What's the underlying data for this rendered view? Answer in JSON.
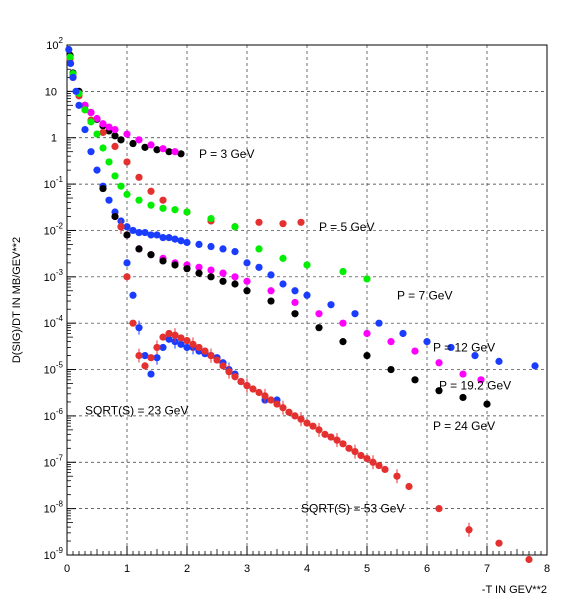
{
  "chart_data": {
    "type": "scatter",
    "xlabel": "-T IN GEV**2",
    "ylabel": "D(SIG)/DT IN MB/GEV**2",
    "xlim": [
      0,
      8
    ],
    "ylim_log10": [
      -9,
      2
    ],
    "ylog": true,
    "grid": "dashed",
    "xticks": [
      "0",
      "1",
      "2",
      "3",
      "4",
      "5",
      "6",
      "7",
      "8"
    ],
    "yticks": [
      {
        "base": "10",
        "exp": "2"
      },
      {
        "base": "10",
        "exp": ""
      },
      {
        "base": "1",
        "exp": ""
      },
      {
        "base": "10",
        "exp": "-1"
      },
      {
        "base": "10",
        "exp": "-2"
      },
      {
        "base": "10",
        "exp": "-3"
      },
      {
        "base": "10",
        "exp": "-4"
      },
      {
        "base": "10",
        "exp": "-5"
      },
      {
        "base": "10",
        "exp": "-6"
      },
      {
        "base": "10",
        "exp": "-7"
      },
      {
        "base": "10",
        "exp": "-8"
      },
      {
        "base": "10",
        "exp": "-9"
      }
    ],
    "annotations": [
      {
        "text": "P = 3 GeV",
        "x": 2.2,
        "y": 0.45
      },
      {
        "text": "P = 5 GeV",
        "x": 4.2,
        "y": 0.012
      },
      {
        "text": "P = 7 GeV",
        "x": 5.5,
        "y": 0.0004
      },
      {
        "text": "P = 12 GeV",
        "x": 6.1,
        "y": 3e-05
      },
      {
        "text": "P = 19.2 GeV",
        "x": 6.2,
        "y": 4.5e-06
      },
      {
        "text": "P = 24 GeV",
        "x": 6.1,
        "y": 6e-07
      },
      {
        "text": "SQRT(S) = 23 GeV",
        "x": 0.3,
        "y": 1.3e-06
      },
      {
        "text": "SQRT(S) = 53 GeV",
        "x": 3.9,
        "y": 1e-08
      }
    ],
    "series": [
      {
        "color": "#000000",
        "x": [
          0.05,
          0.1,
          0.2,
          0.3,
          0.4,
          0.5,
          0.6,
          0.7,
          0.8,
          0.9,
          1.1,
          1.3,
          1.5,
          1.7,
          1.9
        ],
        "y": [
          60,
          25,
          10,
          5,
          3.5,
          2.5,
          1.8,
          1.4,
          1.1,
          0.9,
          0.75,
          0.62,
          0.55,
          0.5,
          0.45
        ]
      },
      {
        "color": "#ff00ff",
        "x": [
          0.05,
          0.1,
          0.2,
          0.3,
          0.4,
          0.5,
          0.6,
          0.7,
          0.8,
          1.0,
          1.2,
          1.4,
          1.6,
          1.8
        ],
        "y": [
          55,
          22,
          9,
          5,
          3.5,
          2.6,
          2.0,
          1.7,
          1.5,
          1.2,
          0.9,
          0.7,
          0.58,
          0.5
        ]
      },
      {
        "color": "#e53030",
        "x": [
          0.05,
          0.1,
          0.2,
          0.3,
          0.4,
          0.6,
          0.8,
          1.0,
          1.2,
          1.4,
          1.6,
          2.0,
          2.4,
          2.8,
          3.2,
          3.6,
          3.9
        ],
        "y": [
          50,
          20,
          8,
          4,
          2.4,
          1.3,
          0.65,
          0.3,
          0.14,
          0.07,
          0.045,
          0.025,
          0.016,
          0.012,
          0.015,
          0.014,
          0.015
        ]
      },
      {
        "color": "#00ee00",
        "x": [
          0.05,
          0.1,
          0.2,
          0.3,
          0.4,
          0.5,
          0.6,
          0.7,
          0.8,
          0.9,
          1.0,
          1.2,
          1.4,
          1.6,
          1.8,
          2.0,
          2.4,
          2.8,
          3.2,
          3.6,
          4.0,
          4.6,
          5.0
        ],
        "y": [
          55,
          24,
          9,
          4,
          2.2,
          1.2,
          0.6,
          0.3,
          0.15,
          0.09,
          0.06,
          0.045,
          0.035,
          0.03,
          0.028,
          0.025,
          0.018,
          0.012,
          0.004,
          0.0025,
          0.0018,
          0.0013,
          0.0009
        ]
      },
      {
        "color": "#1a3cff",
        "x": [
          0.03,
          0.06,
          0.1,
          0.15,
          0.2,
          0.3,
          0.4,
          0.5,
          0.6,
          0.7,
          0.8,
          0.9,
          1.0,
          1.1,
          1.2,
          1.3,
          1.4,
          1.5,
          1.6,
          1.7,
          1.8,
          1.9,
          2.0,
          2.2,
          2.4,
          2.6,
          2.8,
          3.0,
          3.2,
          3.4,
          3.6,
          3.8,
          4.0,
          4.4,
          4.8,
          5.2,
          5.6,
          6.0,
          6.4,
          6.8,
          7.2,
          7.8
        ],
        "y": [
          80,
          40,
          20,
          10,
          5,
          1.5,
          0.5,
          0.2,
          0.09,
          0.045,
          0.025,
          0.016,
          0.012,
          0.01,
          0.009,
          0.009,
          0.008,
          0.008,
          0.007,
          0.007,
          0.0065,
          0.006,
          0.0055,
          0.005,
          0.0045,
          0.004,
          0.0035,
          0.002,
          0.0016,
          0.0011,
          0.0007,
          0.0005,
          0.0004,
          0.00025,
          0.00016,
          0.0001,
          6e-05,
          4e-05,
          3e-05,
          2e-05,
          1.5e-05,
          1.2e-05
        ]
      },
      {
        "color": "#ff00ff",
        "x": [
          0.8,
          1.0,
          1.2,
          1.4,
          1.6,
          1.8,
          2.0,
          2.2,
          2.4,
          2.6,
          2.8,
          3.0,
          3.4,
          3.8,
          4.2,
          4.6,
          5.0,
          5.4,
          5.8,
          6.2,
          6.6,
          6.9
        ],
        "y": [
          0.02,
          0.008,
          0.004,
          0.003,
          0.0025,
          0.002,
          0.0018,
          0.0016,
          0.0014,
          0.0012,
          0.001,
          0.0008,
          0.0005,
          0.00028,
          0.00016,
          0.0001,
          6e-05,
          4e-05,
          2.5e-05,
          1.4e-05,
          8e-06,
          6e-06
        ]
      },
      {
        "color": "#000000",
        "x": [
          0.6,
          0.8,
          1.0,
          1.2,
          1.4,
          1.6,
          1.8,
          2.0,
          2.2,
          2.4,
          2.6,
          2.8,
          3.0,
          3.4,
          3.8,
          4.2,
          4.6,
          5.0,
          5.4,
          5.8,
          6.2,
          6.6,
          7.0
        ],
        "y": [
          0.08,
          0.02,
          0.008,
          0.004,
          0.003,
          0.0022,
          0.0018,
          0.0015,
          0.0012,
          0.001,
          0.0008,
          0.0007,
          0.0005,
          0.0003,
          0.00016,
          8e-05,
          4e-05,
          2e-05,
          1e-05,
          6e-06,
          3.5e-06,
          2.5e-06,
          1.8e-06
        ]
      },
      {
        "color": "#1a3cff",
        "error_bars": true,
        "x": [
          0.9,
          1.0,
          1.1,
          1.2,
          1.3,
          1.4,
          1.5,
          1.6,
          1.7,
          1.8,
          1.9,
          2.0,
          2.1,
          2.2,
          2.3,
          2.4,
          2.5,
          2.6,
          2.7,
          2.8,
          2.9,
          3.0,
          3.3,
          3.5
        ],
        "y": [
          0.012,
          0.002,
          0.0004,
          8e-05,
          2e-05,
          8e-06,
          1.8e-05,
          3e-05,
          4.5e-05,
          4e-05,
          3.5e-05,
          3e-05,
          3e-05,
          2.5e-05,
          2.2e-05,
          2e-05,
          1.8e-05,
          1.4e-05,
          1e-05,
          8e-06,
          5.5e-06,
          4.5e-06,
          2.2e-06,
          2.2e-06
        ]
      },
      {
        "color": "#e53030",
        "error_bars": true,
        "x": [
          0.9,
          1.0,
          1.1,
          1.2,
          1.3,
          1.4,
          1.5,
          1.6,
          1.7,
          1.8,
          1.9,
          2.0,
          2.1,
          2.2,
          2.3,
          2.4,
          2.5,
          2.6,
          2.7,
          2.8,
          2.9,
          3.0,
          3.1,
          3.2,
          3.3,
          3.4,
          3.5,
          3.6,
          3.7,
          3.8,
          3.9,
          4.0,
          4.1,
          4.2,
          4.3,
          4.4,
          4.5,
          4.6,
          4.7,
          4.8,
          4.9,
          5.0,
          5.1,
          5.2,
          5.3,
          5.5,
          5.7,
          6.2,
          6.7,
          7.2,
          7.7
        ],
        "y": [
          0.012,
          0.001,
          0.0001,
          2e-05,
          1.2e-05,
          1.8e-05,
          3e-05,
          5e-05,
          6e-05,
          5.5e-05,
          4.8e-05,
          4.2e-05,
          3.5e-05,
          3e-05,
          2.5e-05,
          2e-05,
          1.6e-05,
          1.2e-05,
          9e-06,
          7e-06,
          5.5e-06,
          4.5e-06,
          3.8e-06,
          3.2e-06,
          2.7e-06,
          2.2e-06,
          1.8e-06,
          1.5e-06,
          1.2e-06,
          1e-06,
          8.5e-07,
          7e-07,
          6e-07,
          5e-07,
          4e-07,
          3.5e-07,
          3e-07,
          2.5e-07,
          2e-07,
          1.7e-07,
          1.4e-07,
          1.2e-07,
          1e-07,
          8.5e-08,
          7e-08,
          5e-08,
          3e-08,
          1e-08,
          3.5e-09,
          1.8e-09,
          8e-10
        ]
      }
    ]
  }
}
